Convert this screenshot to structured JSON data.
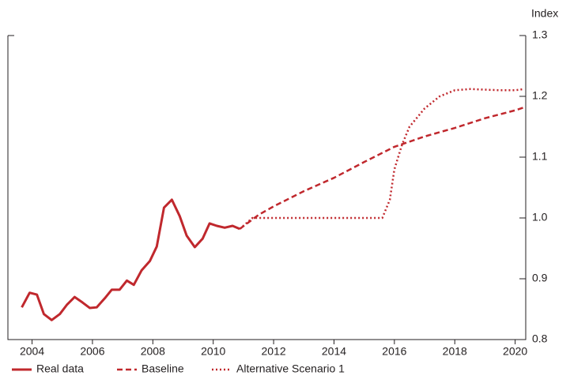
{
  "chart_data": {
    "type": "line",
    "y_axis_label": "Index",
    "xlim": [
      2003.2,
      2020.35
    ],
    "xticks": [
      2004,
      2006,
      2008,
      2010,
      2012,
      2014,
      2016,
      2018,
      2020
    ],
    "ylim": [
      0.8,
      1.3
    ],
    "yticks": [
      0.8,
      0.9,
      {
        "value": 1,
        "label": "1.0"
      },
      1.1,
      1.2,
      1.3
    ],
    "y_axis_side": "right",
    "grid": false,
    "legend": "bottom",
    "series": [
      {
        "name": "Real data",
        "color": "#c0282d",
        "style": "solid",
        "x": [
          2003.66,
          2003.92,
          2004.16,
          2004.39,
          2004.65,
          2004.92,
          2005.15,
          2005.41,
          2005.67,
          2005.91,
          2006.14,
          2006.41,
          2006.64,
          2006.9,
          2007.14,
          2007.37,
          2007.63,
          2007.9,
          2008.13,
          2008.37,
          2008.63,
          2008.89,
          2009.12,
          2009.39,
          2009.65,
          2009.88,
          2010.12,
          2010.38,
          2010.64,
          2010.88
        ],
        "values": [
          0.853,
          0.877,
          0.874,
          0.842,
          0.832,
          0.842,
          0.857,
          0.87,
          0.861,
          0.852,
          0.853,
          0.868,
          0.882,
          0.882,
          0.897,
          0.89,
          0.914,
          0.929,
          0.953,
          1.017,
          1.03,
          1.003,
          0.971,
          0.952,
          0.966,
          0.991,
          0.987,
          0.984,
          0.987,
          0.982
        ]
      },
      {
        "name": "Baseline",
        "color": "#c0282d",
        "style": "dashed",
        "x": [
          2010.88,
          2011.5,
          2012,
          2013,
          2014,
          2015,
          2016,
          2017,
          2018,
          2019,
          2020,
          2020.3
        ],
        "values": [
          0.982,
          1.005,
          1.019,
          1.044,
          1.066,
          1.092,
          1.117,
          1.134,
          1.148,
          1.164,
          1.177,
          1.182
        ]
      },
      {
        "name": "Alternative Scenario 1",
        "color": "#c0282d",
        "style": "dotted",
        "x": [
          2010.88,
          2011.3,
          2012,
          2013,
          2014,
          2015,
          2015.6,
          2015.85,
          2016,
          2016.25,
          2016.5,
          2017,
          2017.5,
          2018,
          2018.5,
          2019,
          2019.5,
          2020,
          2020.3
        ],
        "values": [
          0.982,
          1.0,
          1.0,
          1.0,
          1.0,
          1.0,
          1.0,
          1.03,
          1.08,
          1.12,
          1.15,
          1.18,
          1.2,
          1.21,
          1.212,
          1.211,
          1.21,
          1.21,
          1.212
        ]
      }
    ]
  }
}
